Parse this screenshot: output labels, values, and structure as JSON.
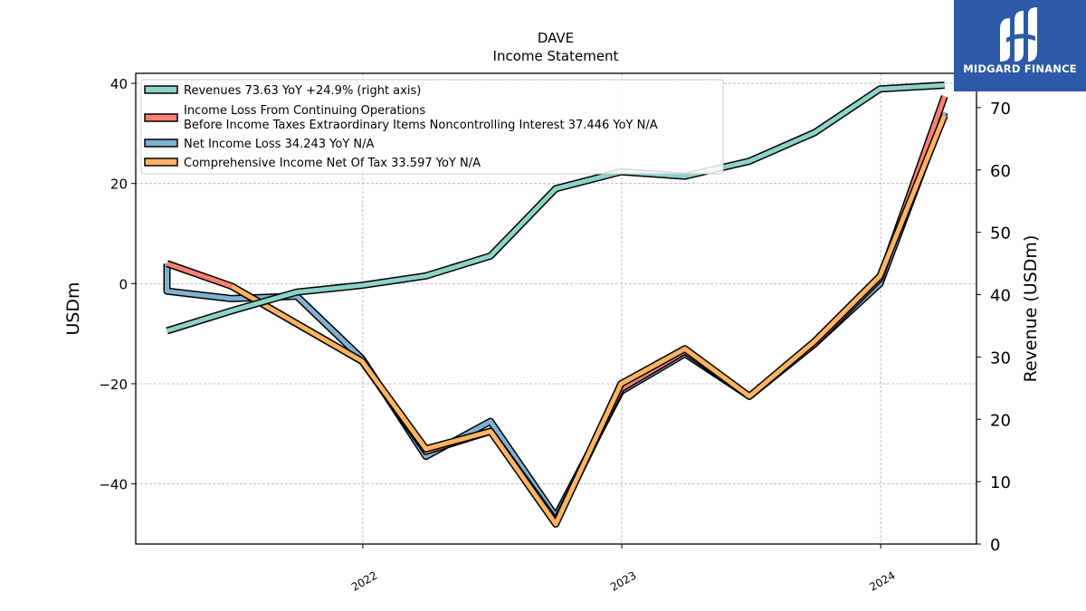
{
  "chart_data": {
    "type": "line",
    "title": "DAVE",
    "subtitle": "Income Statement",
    "ylabel": "USDm",
    "y2label": "Revenue (USDm)",
    "ylim": [
      -52,
      42
    ],
    "y2lim": [
      0,
      75.5
    ],
    "yticks": [
      40,
      20,
      0,
      -20,
      -40
    ],
    "ytick_labels": [
      "40",
      "20",
      "0",
      "−20",
      "−40"
    ],
    "y2ticks": [
      0,
      10,
      20,
      30,
      40,
      50,
      60,
      70
    ],
    "y2tick_labels": [
      "0",
      "10",
      "20",
      "30",
      "40",
      "50",
      "60",
      "70"
    ],
    "xlim": [
      "2021-02-15",
      "2024-05-15"
    ],
    "xticks": [
      "2022-01-01",
      "2023-01-01",
      "2024-01-01"
    ],
    "xtick_labels": [
      "2022",
      "2023",
      "2024"
    ],
    "grid": true,
    "legend_position": "top-left",
    "series": [
      {
        "name": "Revenues  73.63 YoY +24.9% (right axis)",
        "axis": "right",
        "color": "#8dd3c7",
        "x": [
          "2021-03-31",
          "2021-06-30",
          "2021-09-30",
          "2021-12-31",
          "2022-03-31",
          "2022-06-30",
          "2022-09-30",
          "2022-12-31",
          "2023-03-31",
          "2023-06-30",
          "2023-09-30",
          "2023-12-31",
          "2024-03-31"
        ],
        "values": [
          34.2,
          37.4,
          40.4,
          41.5,
          43.0,
          46.2,
          57.0,
          59.7,
          59.0,
          61.4,
          66.0,
          73.0,
          73.6
        ]
      },
      {
        "name": "Income Loss From Continuing Operations\nBefore Income Taxes Extraordinary Items Noncontrolling Interest  37.446 YoY N/A",
        "axis": "left",
        "color": "#fb8072",
        "x": [
          "2021-03-31",
          "2021-03-31",
          "2021-06-30",
          "2021-09-30",
          "2021-12-31",
          "2022-03-31",
          "2022-06-30",
          "2022-09-30",
          "2022-12-31",
          "2023-03-31",
          "2023-06-30",
          "2023-09-30",
          "2023-12-31",
          "2024-03-31"
        ],
        "values": [
          4.0,
          4.0,
          -0.5,
          -8.0,
          -15.5,
          -33.5,
          -29.5,
          -47.5,
          -21.0,
          -13.5,
          -22.5,
          -12.0,
          1.0,
          37.4
        ]
      },
      {
        "name": "Net Income Loss  34.243 YoY N/A",
        "axis": "left",
        "color": "#80b1d3",
        "x": [
          "2021-03-31",
          "2021-03-31",
          "2021-06-30",
          "2021-09-30",
          "2021-12-31",
          "2022-03-31",
          "2022-06-30",
          "2022-09-30",
          "2022-12-31",
          "2023-03-31",
          "2023-06-30",
          "2023-09-30",
          "2023-12-31",
          "2024-03-31"
        ],
        "values": [
          4.0,
          -1.5,
          -3.0,
          -2.5,
          -15.0,
          -34.5,
          -27.5,
          -46.5,
          -21.5,
          -14.0,
          -22.5,
          -12.0,
          0.0,
          34.2
        ]
      },
      {
        "name": "Comprehensive Income Net Of Tax  33.597 YoY N/A",
        "axis": "left",
        "color": "#fdb462",
        "x": [
          "2021-06-30",
          "2021-09-30",
          "2021-12-31",
          "2022-03-31",
          "2022-06-30",
          "2022-09-30",
          "2022-12-31",
          "2023-03-31",
          "2023-06-30",
          "2023-09-30",
          "2023-12-31",
          "2024-03-31"
        ],
        "values": [
          -0.5,
          -8.0,
          -15.5,
          -33.0,
          -29.5,
          -48.0,
          -20.0,
          -13.0,
          -22.5,
          -11.5,
          1.5,
          33.6
        ]
      }
    ]
  },
  "logo": {
    "text": "MIDGARD FINANCE"
  }
}
